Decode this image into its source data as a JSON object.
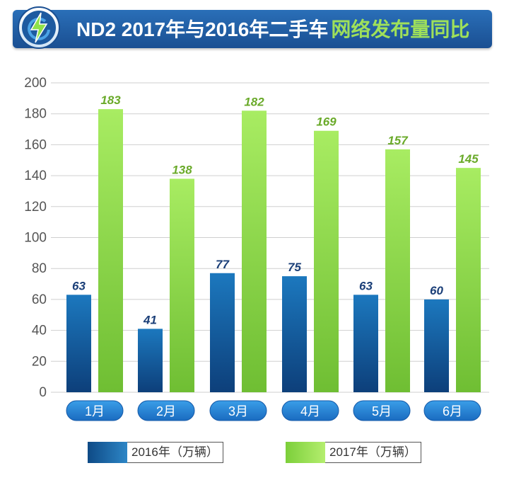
{
  "header": {
    "title_main": "ND2 2017年与2016年二手车",
    "title_highlight": "网络发布量同比",
    "logo_icon": "lightning-bolt-icon"
  },
  "colors": {
    "banner": "#1f5ea8",
    "series_2016": "#1466a8",
    "series_2017": "#8fdc4a",
    "label_2016": "#1b3f78",
    "label_2017": "#6aaa2a"
  },
  "chart_data": {
    "type": "bar",
    "categories": [
      "1月",
      "2月",
      "3月",
      "4月",
      "5月",
      "6月"
    ],
    "series": [
      {
        "name": "2016年（万辆）",
        "values": [
          63,
          41,
          77,
          75,
          63,
          60
        ]
      },
      {
        "name": "2017年（万辆）",
        "values": [
          183,
          138,
          182,
          169,
          157,
          145
        ]
      }
    ],
    "yticks": [
      "200",
      "180",
      "160",
      "140",
      "120",
      "100",
      "80",
      "60",
      "40",
      "20",
      "0"
    ],
    "ylim": [
      0,
      200
    ],
    "grid": true,
    "legend": "bottom"
  }
}
